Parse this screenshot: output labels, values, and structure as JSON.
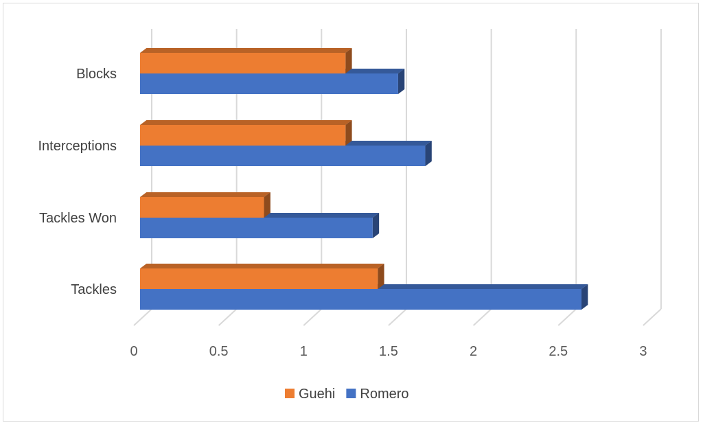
{
  "chart_data": {
    "type": "bar",
    "orientation": "horizontal",
    "style": "3d",
    "categories": [
      "Tackles",
      "Tackles Won",
      "Interceptions",
      "Blocks"
    ],
    "series": [
      {
        "name": "Guehi",
        "color": "#ED7D31",
        "values": [
          1.4,
          0.73,
          1.21,
          1.21
        ]
      },
      {
        "name": "Romero",
        "color": "#4472C4",
        "values": [
          2.6,
          1.37,
          1.68,
          1.52
        ]
      }
    ],
    "xlim": [
      0,
      3
    ],
    "xticks": [
      "0",
      "0.5",
      "1",
      "1.5",
      "2",
      "2.5",
      "3"
    ],
    "grid": true,
    "legend_position": "bottom"
  }
}
